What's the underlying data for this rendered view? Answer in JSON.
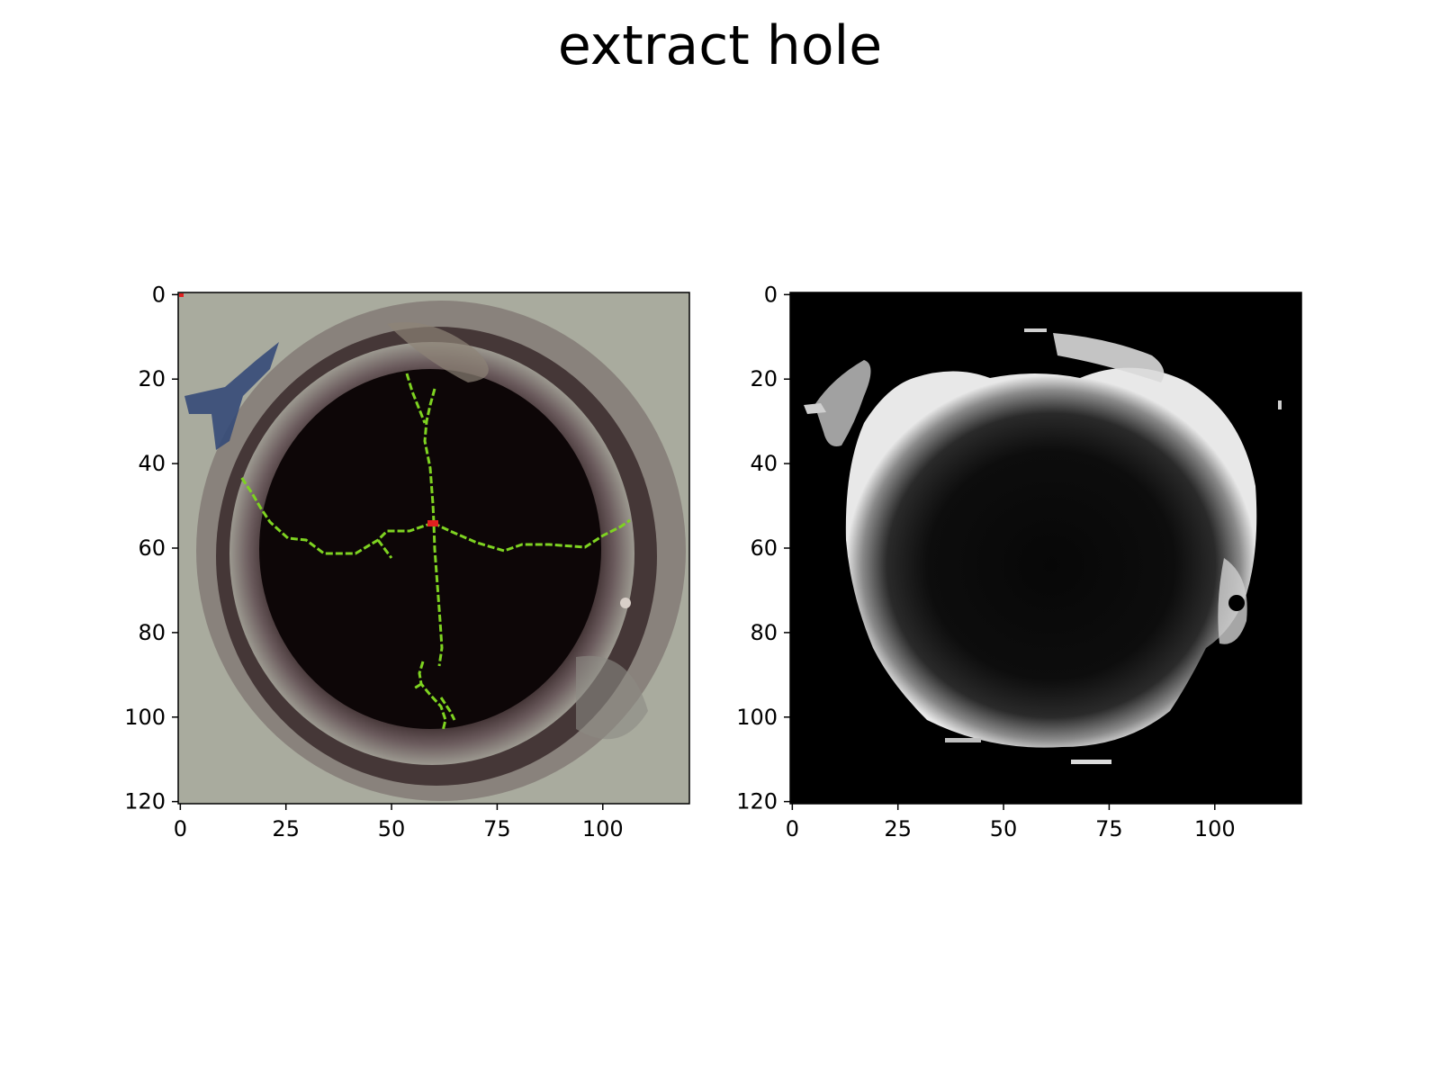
{
  "figure": {
    "title": "extract hole"
  },
  "panels": [
    {
      "name": "left",
      "image": "color photo of a dark circular hole with green skeleton lines",
      "xlim": [
        0,
        121
      ],
      "ylim": [
        121,
        0
      ],
      "xticks": [
        0,
        25,
        50,
        75,
        100
      ],
      "yticks": [
        0,
        20,
        40,
        60,
        80,
        100,
        120
      ]
    },
    {
      "name": "right",
      "image": "grayscale masked hole region on black background",
      "xlim": [
        0,
        121
      ],
      "ylim": [
        121,
        0
      ],
      "xticks": [
        0,
        25,
        50,
        75,
        100
      ],
      "yticks": [
        0,
        20,
        40,
        60,
        80,
        100,
        120
      ]
    }
  ],
  "colors": {
    "skeleton": "#7ed321",
    "marker_red": "#e02020",
    "background_left": "#a9ab9e",
    "background_right": "#000000"
  }
}
